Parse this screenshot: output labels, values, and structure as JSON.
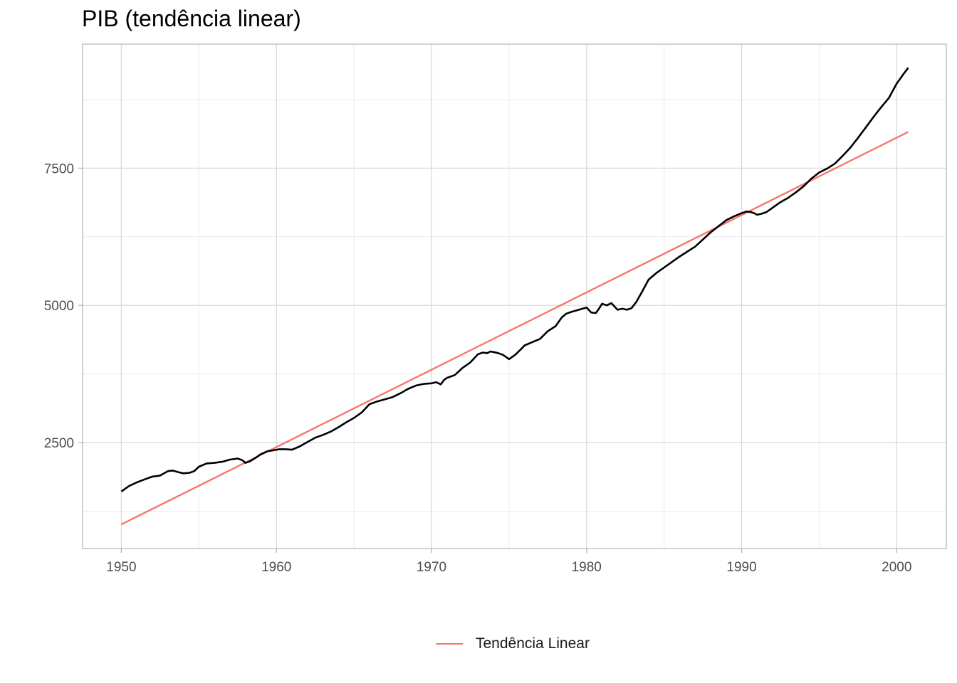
{
  "chart_data": {
    "type": "line",
    "title": "PIB (tendência linear)",
    "xlabel": "",
    "ylabel": "",
    "xlim": [
      1947.5,
      2003.2
    ],
    "ylim": [
      570,
      9760
    ],
    "x_ticks": [
      1950,
      1960,
      1970,
      1980,
      1990,
      2000
    ],
    "y_ticks": [
      2500,
      5000,
      7500
    ],
    "grid": true,
    "legend_position": "bottom",
    "series": [
      {
        "color": "#000000",
        "x": [
          1950.0,
          1950.5,
          1951.0,
          1951.5,
          1952.0,
          1952.5,
          1953.0,
          1953.3,
          1953.7,
          1954.0,
          1954.4,
          1954.7,
          1955.0,
          1955.5,
          1956.0,
          1956.5,
          1957.0,
          1957.5,
          1957.8,
          1958.0,
          1958.3,
          1958.7,
          1959.0,
          1959.4,
          1959.8,
          1960.2,
          1960.6,
          1961.0,
          1961.5,
          1962.0,
          1962.5,
          1963.0,
          1963.5,
          1964.0,
          1964.5,
          1965.0,
          1965.5,
          1966.0,
          1966.5,
          1967.0,
          1967.5,
          1968.0,
          1968.5,
          1969.0,
          1969.5,
          1970.0,
          1970.3,
          1970.6,
          1970.8,
          1971.0,
          1971.5,
          1972.0,
          1972.5,
          1973.0,
          1973.3,
          1973.6,
          1973.8,
          1974.0,
          1974.3,
          1974.6,
          1974.8,
          1975.0,
          1975.4,
          1975.8,
          1976.0,
          1976.5,
          1977.0,
          1977.5,
          1978.0,
          1978.4,
          1978.7,
          1979.0,
          1979.5,
          1980.0,
          1980.3,
          1980.6,
          1980.8,
          1981.0,
          1981.3,
          1981.6,
          1981.8,
          1982.0,
          1982.3,
          1982.6,
          1982.9,
          1983.2,
          1983.6,
          1984.0,
          1984.5,
          1985.0,
          1985.5,
          1986.0,
          1986.5,
          1987.0,
          1987.5,
          1988.0,
          1988.5,
          1989.0,
          1989.5,
          1990.0,
          1990.3,
          1990.6,
          1990.8,
          1991.0,
          1991.3,
          1991.6,
          1992.0,
          1992.5,
          1993.0,
          1993.5,
          1994.0,
          1994.5,
          1995.0,
          1995.5,
          1996.0,
          1996.5,
          1997.0,
          1997.5,
          1998.0,
          1998.5,
          1999.0,
          1999.5,
          2000.0,
          2000.4,
          2000.75
        ],
        "values": [
          1610,
          1710,
          1775,
          1830,
          1880,
          1900,
          1980,
          1990,
          1960,
          1940,
          1950,
          1980,
          2060,
          2120,
          2130,
          2150,
          2190,
          2210,
          2180,
          2130,
          2160,
          2230,
          2290,
          2340,
          2360,
          2380,
          2380,
          2370,
          2430,
          2510,
          2590,
          2640,
          2700,
          2780,
          2870,
          2950,
          3050,
          3200,
          3250,
          3290,
          3330,
          3400,
          3480,
          3540,
          3570,
          3580,
          3600,
          3560,
          3640,
          3680,
          3730,
          3860,
          3960,
          4110,
          4140,
          4130,
          4160,
          4150,
          4130,
          4100,
          4060,
          4020,
          4100,
          4210,
          4270,
          4330,
          4390,
          4530,
          4620,
          4780,
          4850,
          4880,
          4920,
          4960,
          4870,
          4860,
          4940,
          5030,
          5000,
          5040,
          4980,
          4920,
          4940,
          4920,
          4950,
          5060,
          5260,
          5470,
          5590,
          5690,
          5790,
          5890,
          5980,
          6070,
          6200,
          6330,
          6440,
          6550,
          6620,
          6680,
          6710,
          6700,
          6680,
          6650,
          6670,
          6700,
          6780,
          6880,
          6960,
          7060,
          7170,
          7310,
          7420,
          7490,
          7580,
          7720,
          7870,
          8050,
          8240,
          8430,
          8610,
          8780,
          9040,
          9200,
          9330
        ]
      },
      {
        "name": "Tendência Linear",
        "color": "#F8766D",
        "x": [
          1950.0,
          2000.75
        ],
        "values": [
          1010,
          8160
        ]
      }
    ]
  }
}
